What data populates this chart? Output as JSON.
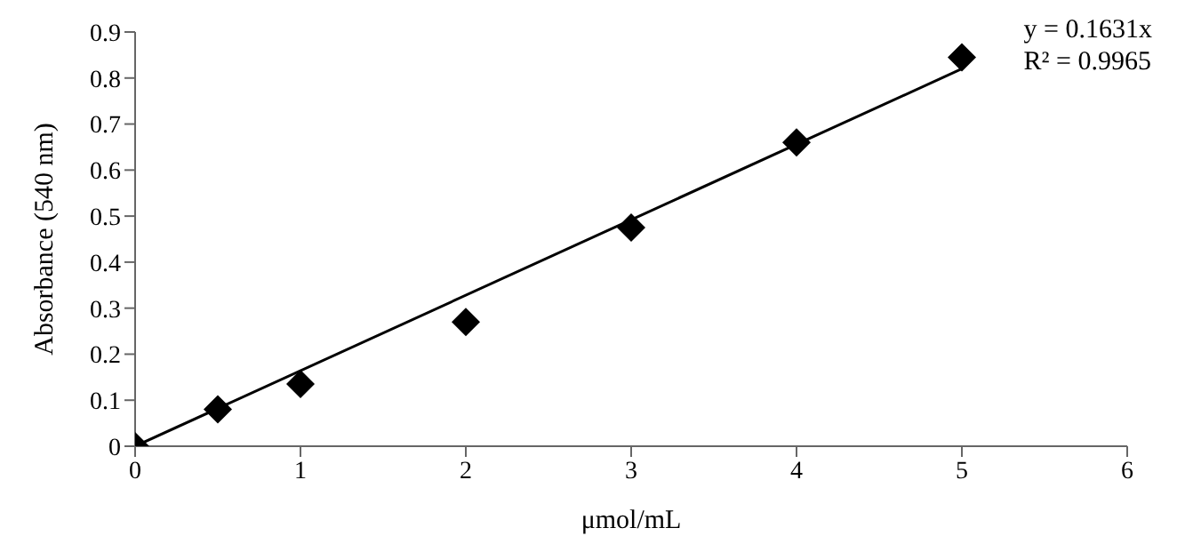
{
  "chart_data": {
    "type": "scatter",
    "xlabel": "μmol/mL",
    "ylabel": "Absorbance (540 nm)",
    "annotations": [
      "y = 0.1631x",
      "R² = 0.9965"
    ],
    "series": [
      {
        "color": "#000000",
        "marker": "diamond",
        "x": [
          0,
          0.5,
          1,
          2,
          3,
          4,
          5
        ],
        "values": [
          0,
          0.08,
          0.135,
          0.27,
          0.475,
          0.66,
          0.845
        ]
      },
      {
        "type": "line",
        "color": "#000000",
        "marker": "none",
        "line_style": "solid",
        "x": [
          0,
          5
        ],
        "values": [
          0,
          0.82
        ]
      }
    ],
    "xlim": [
      0,
      6
    ],
    "xticks": [
      0,
      1,
      2,
      3,
      4,
      5,
      6
    ],
    "ylim": [
      0,
      0.9
    ],
    "yticks": [
      0,
      0.1,
      0.2,
      0.3,
      0.4,
      0.5,
      0.6,
      0.7,
      0.8,
      0.9
    ],
    "grid": false
  }
}
